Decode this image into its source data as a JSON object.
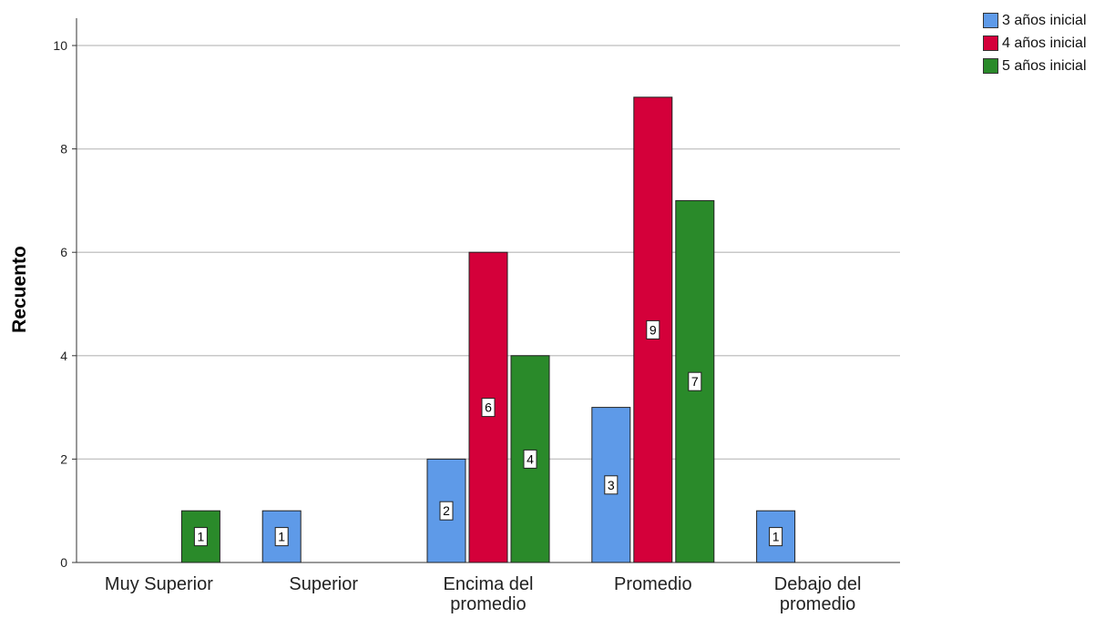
{
  "chart_data": {
    "type": "bar",
    "categories": [
      "Muy Superior",
      "Superior",
      "Encima del promedio",
      "Promedio",
      "Debajo del promedio"
    ],
    "category_lines": [
      [
        "Muy Superior"
      ],
      [
        "Superior"
      ],
      [
        "Encima del",
        "promedio"
      ],
      [
        "Promedio"
      ],
      [
        "Debajo del",
        "promedio"
      ]
    ],
    "series": [
      {
        "name": "3 años inicial",
        "color": "#5e9ae8",
        "values": [
          0,
          1,
          2,
          3,
          1
        ]
      },
      {
        "name": "4 años inicial",
        "color": "#d4003a",
        "values": [
          0,
          0,
          6,
          9,
          0
        ]
      },
      {
        "name": "5 años inicial",
        "color": "#2a8a2a",
        "values": [
          1,
          0,
          4,
          7,
          0
        ]
      }
    ],
    "ylabel": "Recuento",
    "xlabel": "",
    "ylim": [
      0,
      10
    ],
    "yticks": [
      0,
      2,
      4,
      6,
      8,
      10
    ],
    "grid": true,
    "legend_position": "top-right"
  }
}
